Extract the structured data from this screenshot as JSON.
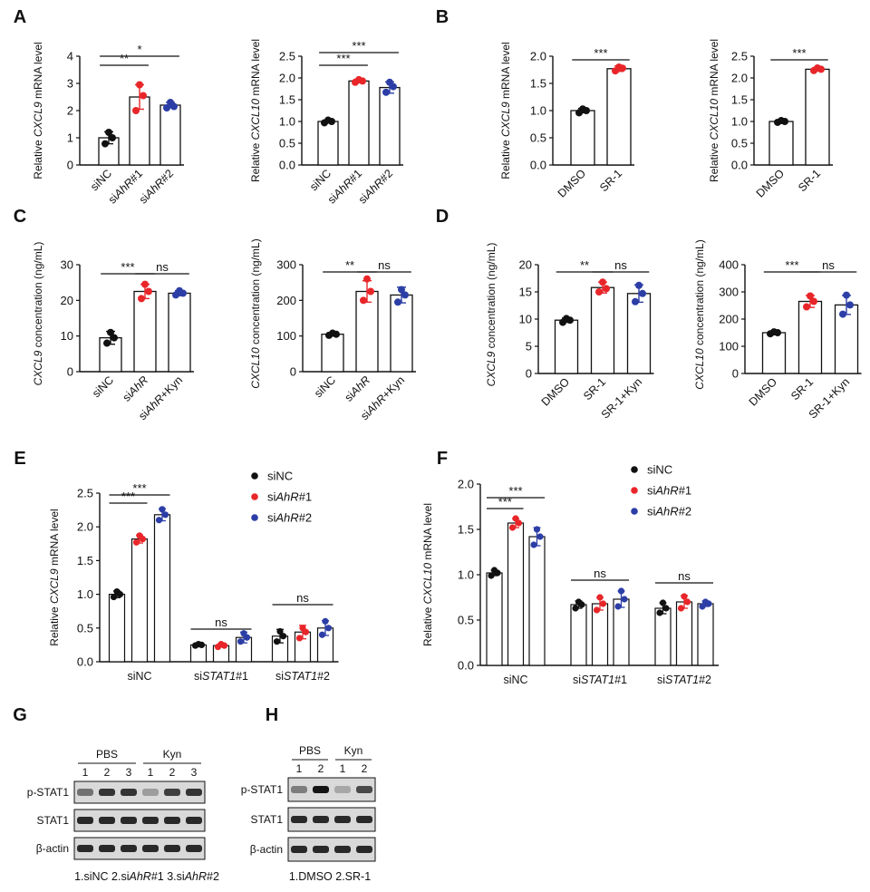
{
  "chart_data": [
    {
      "panel": "A",
      "type": "bar",
      "ylabel": "Relative CXCL9 mRNA level",
      "categories": [
        "siNC",
        "siAhR#1",
        "siAhR#2"
      ],
      "colors": [
        "#111111",
        "#e8262a",
        "#2c3ea6"
      ],
      "ylim": [
        0,
        4
      ],
      "ticks": [
        0,
        1,
        2,
        3,
        4
      ],
      "values": [
        1.0,
        2.5,
        2.2
      ],
      "errors": [
        0.22,
        0.45,
        0.1
      ],
      "points": [
        [
          0.78,
          1.0,
          1.2
        ],
        [
          2.0,
          2.55,
          2.95
        ],
        [
          2.1,
          2.15,
          2.3
        ]
      ],
      "significance": [
        {
          "from": 0,
          "to": 1,
          "label": "**"
        },
        {
          "from": 0,
          "to": 2,
          "label": "*"
        }
      ]
    },
    {
      "panel": "A",
      "type": "bar",
      "ylabel": "Relative CXCL10 mRNA level",
      "categories": [
        "siNC",
        "siAhR#1",
        "siAhR#2"
      ],
      "colors": [
        "#111111",
        "#e8262a",
        "#2c3ea6"
      ],
      "ylim": [
        0,
        2.5
      ],
      "ticks": [
        "0.0",
        "0.5",
        "1.0",
        "1.5",
        "2.0",
        "2.5"
      ],
      "values": [
        1.0,
        1.93,
        1.78
      ],
      "errors": [
        0.03,
        0.04,
        0.13
      ],
      "points": [
        [
          0.97,
          1.0,
          1.03
        ],
        [
          1.9,
          1.93,
          1.96
        ],
        [
          1.67,
          1.8,
          1.9
        ]
      ],
      "significance": [
        {
          "from": 0,
          "to": 1,
          "label": "***"
        },
        {
          "from": 0,
          "to": 2,
          "label": "***"
        }
      ]
    },
    {
      "panel": "B",
      "type": "bar",
      "ylabel": "Relative CXCL9 mRNA level",
      "categories": [
        "DMSO",
        "SR-1"
      ],
      "colors": [
        "#111111",
        "#e8262a"
      ],
      "ylim": [
        0,
        2.0
      ],
      "ticks": [
        "0.0",
        "0.5",
        "1.0",
        "1.5",
        "2.0"
      ],
      "values": [
        1.0,
        1.77
      ],
      "errors": [
        0.04,
        0.05
      ],
      "points": [
        [
          0.96,
          1.0,
          1.03
        ],
        [
          1.73,
          1.78,
          1.8
        ]
      ],
      "significance": [
        {
          "from": 0,
          "to": 1,
          "label": "***"
        }
      ]
    },
    {
      "panel": "B",
      "type": "bar",
      "ylabel": "Relative CXCL10 mRNA level",
      "categories": [
        "DMSO",
        "SR-1"
      ],
      "colors": [
        "#111111",
        "#e8262a"
      ],
      "ylim": [
        0,
        2.5
      ],
      "ticks": [
        "0.0",
        "0.5",
        "1.0",
        "1.5",
        "2.0",
        "2.5"
      ],
      "values": [
        1.0,
        2.2
      ],
      "errors": [
        0.03,
        0.04
      ],
      "points": [
        [
          0.98,
          1.0,
          1.02
        ],
        [
          2.17,
          2.2,
          2.23
        ]
      ],
      "significance": [
        {
          "from": 0,
          "to": 1,
          "label": "***"
        }
      ]
    },
    {
      "panel": "C",
      "type": "bar",
      "ylabel": "CXCL9 concentration (ng/mL)",
      "categories": [
        "siNC",
        "siAhR",
        "siAhR+Kyn"
      ],
      "colors": [
        "#111111",
        "#e8262a",
        "#2c3ea6"
      ],
      "ylim": [
        0,
        30
      ],
      "ticks": [
        0,
        10,
        20,
        30
      ],
      "values": [
        9.5,
        22.5,
        22.0
      ],
      "errors": [
        1.8,
        2.0,
        0.7
      ],
      "points": [
        [
          8.0,
          9.5,
          11.0
        ],
        [
          20.5,
          22.5,
          24.5
        ],
        [
          21.5,
          22.0,
          22.7
        ]
      ],
      "significance": [
        {
          "from": 0,
          "to": 1,
          "label": "***"
        },
        {
          "from": 1,
          "to": 2,
          "label": "ns"
        }
      ]
    },
    {
      "panel": "C",
      "type": "bar",
      "ylabel": "CXCL10 concentration (ng/mL)",
      "categories": [
        "siNC",
        "siAhR",
        "siAhR+Kyn"
      ],
      "colors": [
        "#111111",
        "#e8262a",
        "#2c3ea6"
      ],
      "ylim": [
        0,
        300
      ],
      "ticks": [
        0,
        100,
        200,
        300
      ],
      "values": [
        105,
        225,
        215
      ],
      "errors": [
        4,
        30,
        22
      ],
      "points": [
        [
          102,
          105,
          108
        ],
        [
          200,
          225,
          260
        ],
        [
          195,
          215,
          230
        ]
      ],
      "significance": [
        {
          "from": 0,
          "to": 1,
          "label": "**"
        },
        {
          "from": 1,
          "to": 2,
          "label": "ns"
        }
      ]
    },
    {
      "panel": "D",
      "type": "bar",
      "ylabel": "CXCL9 concentration (ng/mL)",
      "categories": [
        "DMSO",
        "SR-1",
        "SR-1+Kyn"
      ],
      "colors": [
        "#111111",
        "#e8262a",
        "#2c3ea6"
      ],
      "ylim": [
        0,
        20
      ],
      "ticks": [
        0,
        5,
        10,
        15,
        20
      ],
      "values": [
        9.8,
        15.8,
        14.7
      ],
      "errors": [
        0.4,
        1.0,
        1.6
      ],
      "points": [
        [
          9.4,
          9.8,
          10.1
        ],
        [
          15.0,
          15.6,
          16.8
        ],
        [
          13.2,
          14.7,
          16.2
        ]
      ],
      "significance": [
        {
          "from": 0,
          "to": 1,
          "label": "**"
        },
        {
          "from": 1,
          "to": 2,
          "label": "ns"
        }
      ]
    },
    {
      "panel": "D",
      "type": "bar",
      "ylabel": "CXCL10 concentration (ng/mL)",
      "categories": [
        "DMSO",
        "SR-1",
        "SR-1+Kyn"
      ],
      "colors": [
        "#111111",
        "#e8262a",
        "#2c3ea6"
      ],
      "ylim": [
        0,
        400
      ],
      "ticks": [
        0,
        100,
        200,
        300,
        400
      ],
      "values": [
        150,
        265,
        252
      ],
      "errors": [
        4,
        22,
        35
      ],
      "points": [
        [
          146,
          150,
          153
        ],
        [
          245,
          265,
          285
        ],
        [
          218,
          252,
          288
        ]
      ],
      "significance": [
        {
          "from": 0,
          "to": 1,
          "label": "***"
        },
        {
          "from": 1,
          "to": 2,
          "label": "ns"
        }
      ]
    },
    {
      "panel": "E",
      "type": "grouped-bar",
      "ylabel": "Relative CXCL9 mRNA level",
      "groups": [
        "siNC",
        "siSTAT1#1",
        "siSTAT1#2"
      ],
      "series": [
        {
          "name": "siNC",
          "color": "#111111",
          "values": [
            1.0,
            0.25,
            0.38
          ],
          "errors": [
            0.05,
            0.02,
            0.1
          ],
          "points": [
            [
              0.96,
              1.0,
              1.04
            ],
            [
              0.24,
              0.25,
              0.26
            ],
            [
              0.3,
              0.38,
              0.45
            ]
          ]
        },
        {
          "name": "siAhR#1",
          "color": "#e8262a",
          "values": [
            1.82,
            0.24,
            0.44
          ],
          "errors": [
            0.06,
            0.02,
            0.1
          ],
          "points": [
            [
              1.77,
              1.82,
              1.87
            ],
            [
              0.22,
              0.24,
              0.26
            ],
            [
              0.35,
              0.44,
              0.5
            ]
          ]
        },
        {
          "name": "siAhR#2",
          "color": "#2c3ea6",
          "values": [
            2.18,
            0.36,
            0.5
          ],
          "errors": [
            0.09,
            0.08,
            0.11
          ],
          "points": [
            [
              2.1,
              2.18,
              2.26
            ],
            [
              0.3,
              0.36,
              0.42
            ],
            [
              0.4,
              0.5,
              0.6
            ]
          ]
        }
      ],
      "ylim": [
        0,
        2.5
      ],
      "ticks": [
        "0.0",
        "0.5",
        "1.0",
        "1.5",
        "2.0",
        "2.5"
      ],
      "significance": [
        {
          "group": 0,
          "from": 0,
          "to": 1,
          "label": "***"
        },
        {
          "group": 0,
          "from": 0,
          "to": 2,
          "label": "***"
        },
        {
          "group": 1,
          "from": 0,
          "to": 2,
          "label": "ns"
        },
        {
          "group": 2,
          "from": 0,
          "to": 2,
          "label": "ns"
        }
      ]
    },
    {
      "panel": "F",
      "type": "grouped-bar",
      "ylabel": "Relative CXCL10 mRNA level",
      "groups": [
        "siNC",
        "siSTAT1#1",
        "siSTAT1#2"
      ],
      "series": [
        {
          "name": "siNC",
          "color": "#111111",
          "values": [
            1.02,
            0.67,
            0.63
          ],
          "errors": [
            0.03,
            0.04,
            0.06
          ],
          "points": [
            [
              0.99,
              1.02,
              1.05
            ],
            [
              0.63,
              0.67,
              0.7
            ],
            [
              0.58,
              0.63,
              0.69
            ]
          ]
        },
        {
          "name": "siAhR#1",
          "color": "#e8262a",
          "values": [
            1.57,
            0.68,
            0.7
          ],
          "errors": [
            0.05,
            0.07,
            0.07
          ],
          "points": [
            [
              1.52,
              1.57,
              1.62
            ],
            [
              0.61,
              0.68,
              0.75
            ],
            [
              0.63,
              0.7,
              0.76
            ]
          ]
        },
        {
          "name": "siAhR#2",
          "color": "#2c3ea6",
          "values": [
            1.42,
            0.73,
            0.68
          ],
          "errors": [
            0.1,
            0.09,
            0.03
          ],
          "points": [
            [
              1.33,
              1.42,
              1.5
            ],
            [
              0.65,
              0.73,
              0.82
            ],
            [
              0.65,
              0.68,
              0.7
            ]
          ]
        }
      ],
      "ylim": [
        0,
        2.0
      ],
      "ticks": [
        "0.0",
        "0.5",
        "1.0",
        "1.5",
        "2.0"
      ],
      "significance": [
        {
          "group": 0,
          "from": 0,
          "to": 1,
          "label": "***"
        },
        {
          "group": 0,
          "from": 0,
          "to": 2,
          "label": "***"
        },
        {
          "group": 1,
          "from": 0,
          "to": 2,
          "label": "ns"
        },
        {
          "group": 2,
          "from": 0,
          "to": 2,
          "label": "ns"
        }
      ]
    }
  ],
  "legend": [
    {
      "label": "siNC",
      "color": "#111111"
    },
    {
      "label": "siAhR#1",
      "color": "#e8262a"
    },
    {
      "label": "siAhR#2",
      "color": "#2c3ea6"
    }
  ],
  "blots": {
    "G": {
      "groups": [
        "PBS",
        "Kyn"
      ],
      "lanes": [
        "1",
        "2",
        "3",
        "1",
        "2",
        "3"
      ],
      "rows": [
        "p-STAT1",
        "STAT1",
        "β-actin"
      ],
      "intensity": [
        [
          0.55,
          0.85,
          0.85,
          0.35,
          0.8,
          0.85
        ],
        [
          0.9,
          0.9,
          0.9,
          0.9,
          0.9,
          0.9
        ],
        [
          0.9,
          0.9,
          0.9,
          0.9,
          0.9,
          0.9
        ]
      ],
      "caption": "1.siNC  2.siAhR#1  3.siAhR#2"
    },
    "H": {
      "groups": [
        "PBS",
        "Kyn"
      ],
      "lanes": [
        "1",
        "2",
        "1",
        "2"
      ],
      "rows": [
        "p-STAT1",
        "STAT1",
        "β-actin"
      ],
      "intensity": [
        [
          0.5,
          1.0,
          0.3,
          0.75
        ],
        [
          0.9,
          0.9,
          0.9,
          0.9
        ],
        [
          0.9,
          0.9,
          0.9,
          0.9
        ]
      ],
      "caption": "1.DMSO  2.SR-1"
    }
  },
  "panel_labels": [
    "A",
    "B",
    "C",
    "D",
    "E",
    "F",
    "G",
    "H"
  ]
}
